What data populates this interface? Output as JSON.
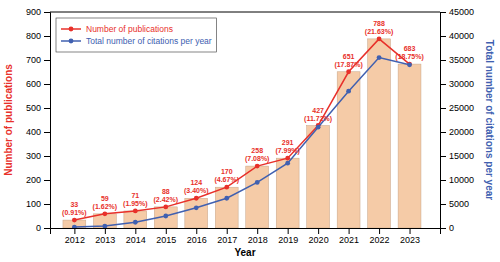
{
  "chart_data": {
    "type": "bar",
    "x": [
      2012,
      2013,
      2014,
      2015,
      2016,
      2017,
      2018,
      2019,
      2020,
      2021,
      2022,
      2023
    ],
    "xlim": [
      2011.2,
      2024
    ],
    "xticks": [
      2012,
      2013,
      2014,
      2015,
      2016,
      2017,
      2018,
      2019,
      2020,
      2021,
      2022,
      2023
    ],
    "xlabel": "Year",
    "ylabel": "Number of publications",
    "ylim": [
      0,
      900
    ],
    "yticks": [
      0,
      100,
      200,
      300,
      400,
      500,
      600,
      700,
      800,
      900
    ],
    "y2label": "Total number of citations per year",
    "y2lim": [
      0,
      45000
    ],
    "y2ticks": [
      0,
      5000,
      10000,
      15000,
      20000,
      25000,
      30000,
      35000,
      40000,
      45000
    ],
    "grid": false,
    "legend": "upper left",
    "series": [
      {
        "type": "bar",
        "color": "#F5CBA7",
        "values": [
          33,
          59,
          71,
          88,
          124,
          170,
          258,
          291,
          427,
          651,
          788,
          683
        ]
      },
      {
        "name": "Number of publications",
        "type": "line",
        "color": "#E8302A",
        "marker": "circle",
        "data_labels": true,
        "values": [
          33,
          59,
          71,
          88,
          124,
          170,
          258,
          291,
          427,
          651,
          788,
          683
        ]
      },
      {
        "name": "Total number of citations per year",
        "type": "line",
        "color": "#4060B0",
        "marker": "circle",
        "axis": "y2",
        "values": [
          200,
          400,
          1200,
          2500,
          4200,
          6200,
          9500,
          13500,
          21000,
          28500,
          35500,
          34000
        ]
      }
    ],
    "annotations": [
      {
        "x": 2012,
        "y": 33,
        "text": "(0.91%)"
      },
      {
        "x": 2013,
        "y": 59,
        "text": "(1.62%)"
      },
      {
        "x": 2014,
        "y": 71,
        "text": "(1.95%)"
      },
      {
        "x": 2015,
        "y": 88,
        "text": "(2.42%)"
      },
      {
        "x": 2016,
        "y": 124,
        "text": "(3.40%)"
      },
      {
        "x": 2017,
        "y": 170,
        "text": "(4.67%)"
      },
      {
        "x": 2018,
        "y": 258,
        "text": "(7.08%)"
      },
      {
        "x": 2019,
        "y": 291,
        "text": "(7.99%)"
      },
      {
        "x": 2020,
        "y": 427,
        "text": "(11.72%)"
      },
      {
        "x": 2021,
        "y": 651,
        "text": "(17.87%)"
      },
      {
        "x": 2022,
        "y": 788,
        "text": "(21.63%)"
      },
      {
        "x": 2023,
        "y": 683,
        "text": "(18.75%)"
      }
    ]
  }
}
